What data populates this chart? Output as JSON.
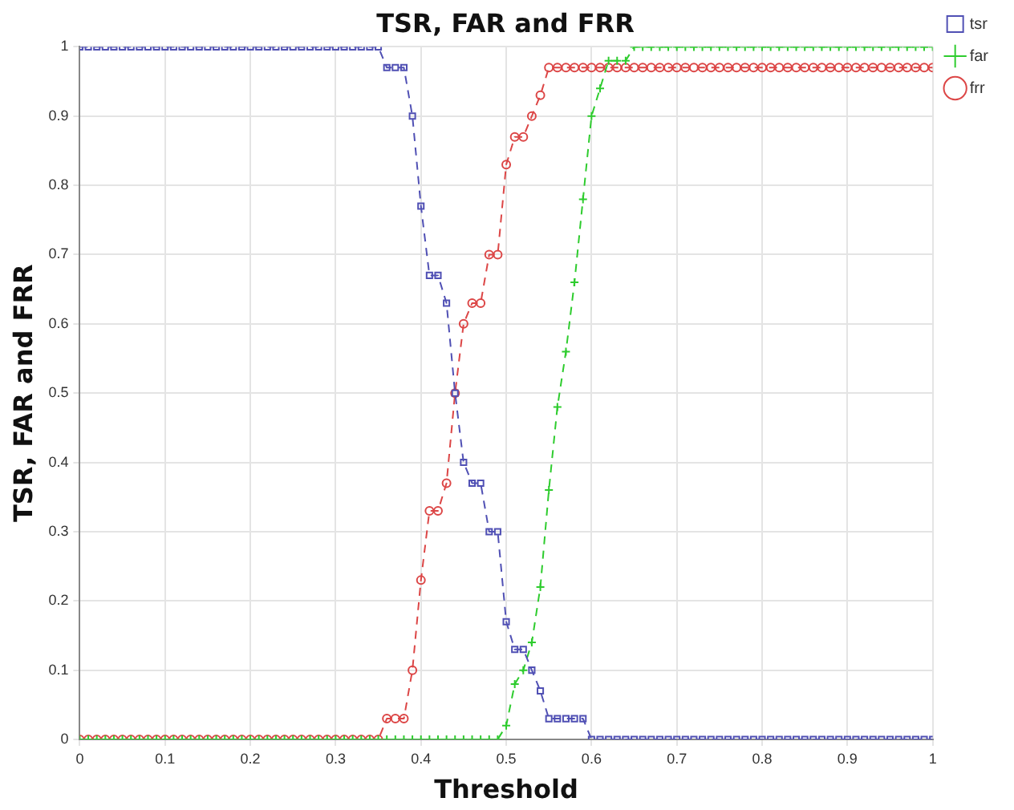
{
  "chart_data": {
    "type": "line",
    "title": "TSR, FAR and FRR",
    "xlabel": "Threshold",
    "ylabel": "TSR, FAR and FRR",
    "x": [
      0,
      0.01,
      0.02,
      0.03,
      0.04,
      0.05,
      0.06,
      0.07,
      0.08,
      0.09,
      0.1,
      0.11,
      0.12,
      0.13,
      0.14,
      0.15,
      0.16,
      0.17,
      0.18,
      0.19,
      0.2,
      0.21,
      0.22,
      0.23,
      0.24,
      0.25,
      0.26,
      0.27,
      0.28,
      0.29,
      0.3,
      0.31,
      0.32,
      0.33,
      0.34,
      0.35,
      0.36,
      0.37,
      0.38,
      0.39,
      0.4,
      0.41,
      0.42,
      0.43,
      0.44,
      0.45,
      0.46,
      0.47,
      0.48,
      0.49,
      0.5,
      0.51,
      0.52,
      0.53,
      0.54,
      0.55,
      0.56,
      0.57,
      0.58,
      0.59,
      0.6,
      0.61,
      0.62,
      0.63,
      0.64,
      0.65,
      0.66,
      0.67,
      0.68,
      0.69,
      0.7,
      0.71,
      0.72,
      0.73,
      0.74,
      0.75,
      0.76,
      0.77,
      0.78,
      0.79,
      0.8,
      0.81,
      0.82,
      0.83,
      0.84,
      0.85,
      0.86,
      0.87,
      0.88,
      0.89,
      0.9,
      0.91,
      0.92,
      0.93,
      0.94,
      0.95,
      0.96,
      0.97,
      0.98,
      0.99,
      1
    ],
    "series": [
      {
        "name": "tsr",
        "color": "#5050b4",
        "marker": "square",
        "line_style": "dashed",
        "values": [
          1,
          1,
          1,
          1,
          1,
          1,
          1,
          1,
          1,
          1,
          1,
          1,
          1,
          1,
          1,
          1,
          1,
          1,
          1,
          1,
          1,
          1,
          1,
          1,
          1,
          1,
          1,
          1,
          1,
          1,
          1,
          1,
          1,
          1,
          1,
          1,
          0.97,
          0.97,
          0.97,
          0.9,
          0.77,
          0.67,
          0.67,
          0.63,
          0.5,
          0.4,
          0.37,
          0.37,
          0.3,
          0.3,
          0.17,
          0.13,
          0.13,
          0.1,
          0.07,
          0.03,
          0.03,
          0.03,
          0.03,
          0.03,
          0,
          0,
          0,
          0,
          0,
          0,
          0,
          0,
          0,
          0,
          0,
          0,
          0,
          0,
          0,
          0,
          0,
          0,
          0,
          0,
          0,
          0,
          0,
          0,
          0,
          0,
          0,
          0,
          0,
          0,
          0,
          0,
          0,
          0,
          0,
          0,
          0,
          0,
          0,
          0,
          0
        ]
      },
      {
        "name": "far",
        "color": "#2ecc2e",
        "marker": "cross",
        "line_style": "dashed",
        "values": [
          0,
          0,
          0,
          0,
          0,
          0,
          0,
          0,
          0,
          0,
          0,
          0,
          0,
          0,
          0,
          0,
          0,
          0,
          0,
          0,
          0,
          0,
          0,
          0,
          0,
          0,
          0,
          0,
          0,
          0,
          0,
          0,
          0,
          0,
          0,
          0,
          0,
          0,
          0,
          0,
          0,
          0,
          0,
          0,
          0,
          0,
          0,
          0,
          0,
          0,
          0.02,
          0.08,
          0.1,
          0.14,
          0.22,
          0.36,
          0.48,
          0.56,
          0.66,
          0.78,
          0.9,
          0.94,
          0.98,
          0.98,
          0.98,
          1,
          1,
          1,
          1,
          1,
          1,
          1,
          1,
          1,
          1,
          1,
          1,
          1,
          1,
          1,
          1,
          1,
          1,
          1,
          1,
          1,
          1,
          1,
          1,
          1,
          1,
          1,
          1,
          1,
          1,
          1,
          1,
          1,
          1,
          1,
          1
        ]
      },
      {
        "name": "frr",
        "color": "#dc4646",
        "marker": "circle",
        "line_style": "dashed",
        "values": [
          0,
          0,
          0,
          0,
          0,
          0,
          0,
          0,
          0,
          0,
          0,
          0,
          0,
          0,
          0,
          0,
          0,
          0,
          0,
          0,
          0,
          0,
          0,
          0,
          0,
          0,
          0,
          0,
          0,
          0,
          0,
          0,
          0,
          0,
          0,
          0,
          0.03,
          0.03,
          0.03,
          0.1,
          0.23,
          0.33,
          0.33,
          0.37,
          0.5,
          0.6,
          0.63,
          0.63,
          0.7,
          0.7,
          0.83,
          0.87,
          0.87,
          0.9,
          0.93,
          0.97,
          0.97,
          0.97,
          0.97,
          0.97,
          0.97,
          0.97,
          0.97,
          0.97,
          0.97,
          0.97,
          0.97,
          0.97,
          0.97,
          0.97,
          0.97,
          0.97,
          0.97,
          0.97,
          0.97,
          0.97,
          0.97,
          0.97,
          0.97,
          0.97,
          0.97,
          0.97,
          0.97,
          0.97,
          0.97,
          0.97,
          0.97,
          0.97,
          0.97,
          0.97,
          0.97,
          0.97,
          0.97,
          0.97,
          0.97,
          0.97,
          0.97,
          0.97,
          0.97,
          0.97,
          0.97
        ]
      }
    ],
    "xlim": [
      0,
      1
    ],
    "xticks": [
      0,
      0.1,
      0.2,
      0.3,
      0.4,
      0.5,
      0.6,
      0.7,
      0.8,
      0.9,
      1
    ],
    "ylim": [
      0,
      1
    ],
    "yticks": [
      0,
      0.1,
      0.2,
      0.3,
      0.4,
      0.5,
      0.6,
      0.7,
      0.8,
      0.9,
      1
    ],
    "grid": true,
    "legend": "top right"
  }
}
